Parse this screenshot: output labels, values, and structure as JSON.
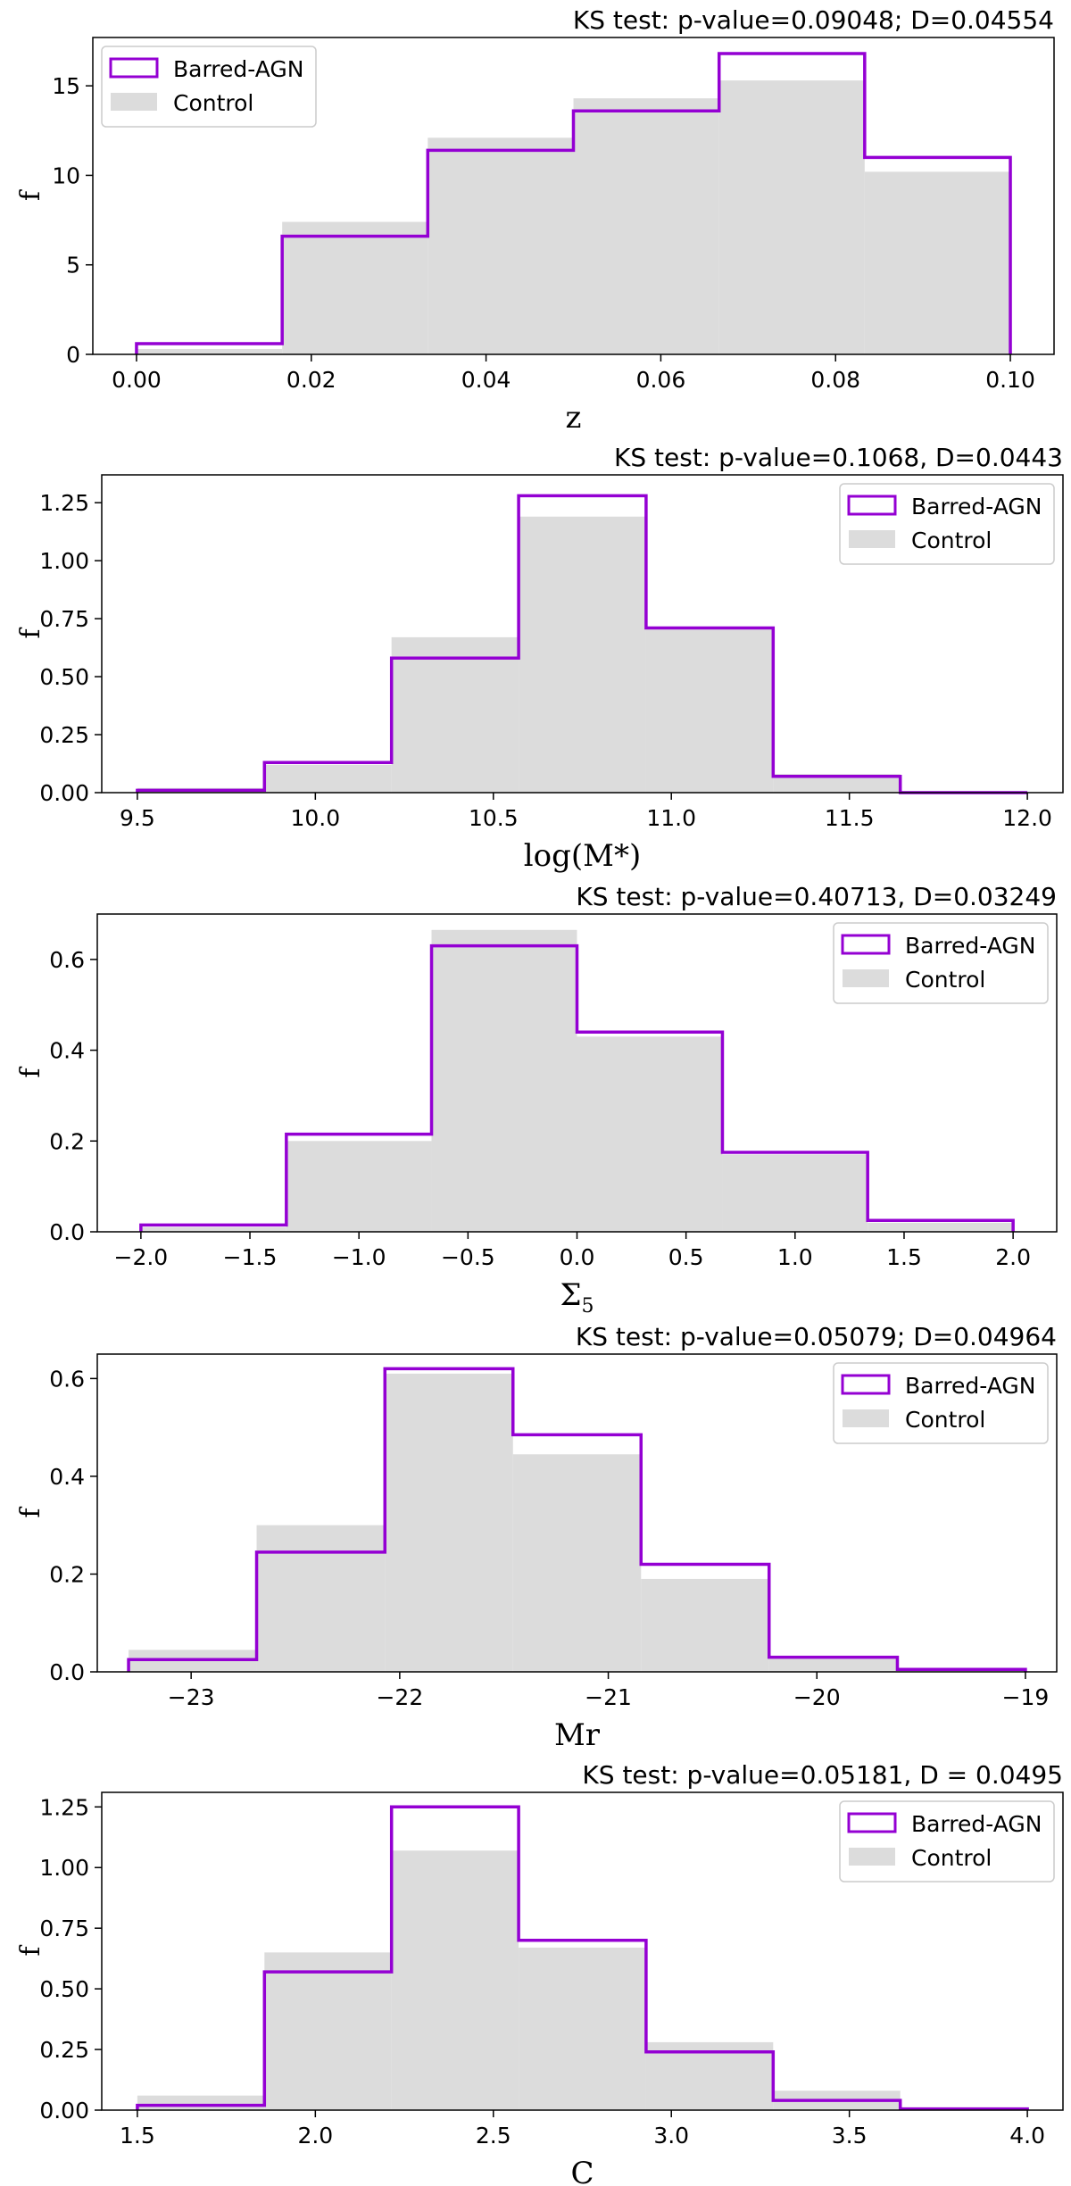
{
  "chart_data": [
    {
      "type": "bar",
      "title": "KS test: p-value=0.09048; D=0.04554",
      "xlabel": "z",
      "ylabel": "f",
      "xlim": [
        -0.005,
        0.105
      ],
      "ylim": [
        0,
        17.7
      ],
      "xticks": [
        0.0,
        0.02,
        0.04,
        0.06,
        0.08,
        0.1
      ],
      "xtick_labels": [
        "0.00",
        "0.02",
        "0.04",
        "0.06",
        "0.08",
        "0.10"
      ],
      "yticks": [
        0,
        5,
        10,
        15
      ],
      "ytick_labels": [
        "0",
        "5",
        "10",
        "15"
      ],
      "legend_position": "top-left",
      "bin_edges": [
        0.0,
        0.01667,
        0.03333,
        0.05,
        0.06667,
        0.08333,
        0.1
      ],
      "series": [
        {
          "name": "Barred-AGN",
          "style": "step",
          "color": "#9400d3",
          "values": [
            0.6,
            6.6,
            11.4,
            13.6,
            16.8,
            11.0
          ]
        },
        {
          "name": "Control",
          "style": "filled",
          "color": "#dcdcdc",
          "values": [
            0.3,
            7.4,
            12.1,
            14.3,
            15.3,
            10.2
          ]
        }
      ]
    },
    {
      "type": "bar",
      "title": "KS test: p-value=0.1068, D=0.0443",
      "xlabel": "log(M*)",
      "ylabel": "f",
      "xlim": [
        9.4,
        12.1
      ],
      "ylim": [
        0,
        1.37
      ],
      "xticks": [
        9.5,
        10.0,
        10.5,
        11.0,
        11.5,
        12.0
      ],
      "xtick_labels": [
        "9.5",
        "10.0",
        "10.5",
        "11.0",
        "11.5",
        "12.0"
      ],
      "yticks": [
        0,
        0.25,
        0.5,
        0.75,
        1.0,
        1.25
      ],
      "ytick_labels": [
        "0.00",
        "0.25",
        "0.50",
        "0.75",
        "1.00",
        "1.25"
      ],
      "legend_position": "top-right",
      "bin_edges": [
        9.5,
        9.857,
        10.214,
        10.571,
        10.929,
        11.286,
        11.643,
        12.0
      ],
      "series": [
        {
          "name": "Barred-AGN",
          "style": "step",
          "color": "#9400d3",
          "values": [
            0.01,
            0.13,
            0.58,
            1.28,
            0.71,
            0.07,
            0.0
          ]
        },
        {
          "name": "Control",
          "style": "filled",
          "color": "#dcdcdc",
          "values": [
            0.02,
            0.12,
            0.67,
            1.19,
            0.71,
            0.08,
            0.0
          ]
        }
      ]
    },
    {
      "type": "bar",
      "title": "KS test: p-value=0.40713, D=0.03249",
      "xlabel": "Σ",
      "xlabel_subscript": "5",
      "ylabel": "f",
      "xlim": [
        -2.2,
        2.2
      ],
      "ylim": [
        0,
        0.7
      ],
      "xticks": [
        -2.0,
        -1.5,
        -1.0,
        -0.5,
        0.0,
        0.5,
        1.0,
        1.5,
        2.0
      ],
      "xtick_labels": [
        "−2.0",
        "−1.5",
        "−1.0",
        "−0.5",
        "0.0",
        "0.5",
        "1.0",
        "1.5",
        "2.0"
      ],
      "yticks": [
        0,
        0.2,
        0.4,
        0.6
      ],
      "ytick_labels": [
        "0.0",
        "0.2",
        "0.4",
        "0.6"
      ],
      "legend_position": "top-right",
      "bin_edges": [
        -2.0,
        -1.333,
        -0.667,
        0.0,
        0.667,
        1.333,
        2.0
      ],
      "series": [
        {
          "name": "Barred-AGN",
          "style": "step",
          "color": "#9400d3",
          "values": [
            0.015,
            0.215,
            0.63,
            0.44,
            0.175,
            0.025
          ]
        },
        {
          "name": "Control",
          "style": "filled",
          "color": "#dcdcdc",
          "values": [
            0.01,
            0.2,
            0.665,
            0.43,
            0.17,
            0.02
          ]
        }
      ]
    },
    {
      "type": "bar",
      "title": "KS test: p-value=0.05079; D=0.04964",
      "xlabel": "Mr",
      "ylabel": "f",
      "xlim": [
        -23.45,
        -18.85
      ],
      "ylim": [
        0,
        0.65
      ],
      "xticks": [
        -23,
        -22,
        -21,
        -20,
        -19
      ],
      "xtick_labels": [
        "−23",
        "−22",
        "−21",
        "−20",
        "−19"
      ],
      "yticks": [
        0,
        0.2,
        0.4,
        0.6
      ],
      "ytick_labels": [
        "0.0",
        "0.2",
        "0.4",
        "0.6"
      ],
      "legend_position": "top-right",
      "bin_edges": [
        -23.3,
        -22.686,
        -22.071,
        -21.457,
        -20.843,
        -20.229,
        -19.614,
        -19.0
      ],
      "series": [
        {
          "name": "Barred-AGN",
          "style": "step",
          "color": "#9400d3",
          "values": [
            0.025,
            0.245,
            0.62,
            0.485,
            0.22,
            0.03,
            0.005
          ]
        },
        {
          "name": "Control",
          "style": "filled",
          "color": "#dcdcdc",
          "values": [
            0.045,
            0.3,
            0.61,
            0.445,
            0.19,
            0.03,
            0.005
          ]
        }
      ]
    },
    {
      "type": "bar",
      "title": "KS test: p-value=0.05181, D = 0.0495",
      "xlabel": "C",
      "ylabel": "f",
      "xlim": [
        1.4,
        4.1
      ],
      "ylim": [
        0,
        1.31
      ],
      "xticks": [
        1.5,
        2.0,
        2.5,
        3.0,
        3.5,
        4.0
      ],
      "xtick_labels": [
        "1.5",
        "2.0",
        "2.5",
        "3.0",
        "3.5",
        "4.0"
      ],
      "yticks": [
        0,
        0.25,
        0.5,
        0.75,
        1.0,
        1.25
      ],
      "ytick_labels": [
        "0.00",
        "0.25",
        "0.50",
        "0.75",
        "1.00",
        "1.25"
      ],
      "legend_position": "top-right",
      "bin_edges": [
        1.5,
        1.857,
        2.214,
        2.571,
        2.929,
        3.286,
        3.643,
        4.0
      ],
      "series": [
        {
          "name": "Barred-AGN",
          "style": "step",
          "color": "#9400d3",
          "values": [
            0.02,
            0.57,
            1.25,
            0.7,
            0.24,
            0.04,
            0.005
          ]
        },
        {
          "name": "Control",
          "style": "filled",
          "color": "#dcdcdc",
          "values": [
            0.06,
            0.65,
            1.07,
            0.67,
            0.28,
            0.08,
            0.005
          ]
        }
      ]
    }
  ]
}
